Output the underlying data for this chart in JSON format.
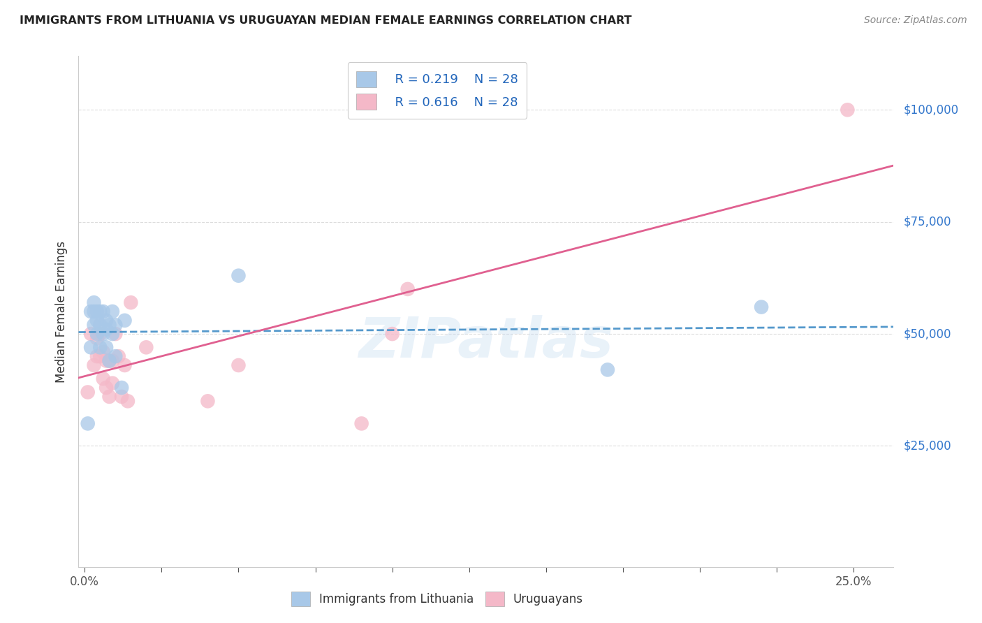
{
  "title": "IMMIGRANTS FROM LITHUANIA VS URUGUAYAN MEDIAN FEMALE EARNINGS CORRELATION CHART",
  "source": "Source: ZipAtlas.com",
  "xlabel_vals": [
    0.0,
    0.025,
    0.05,
    0.075,
    0.1,
    0.125,
    0.15,
    0.175,
    0.2,
    0.225,
    0.25
  ],
  "xlabel_edge_labels": {
    "0.0": "0.0%",
    "0.25": "25.0%"
  },
  "ylabel": "Median Female Earnings",
  "ylabel_ticks": [
    "$25,000",
    "$50,000",
    "$75,000",
    "$100,000"
  ],
  "ylabel_vals": [
    25000,
    50000,
    75000,
    100000
  ],
  "ylim": [
    -2000,
    112000
  ],
  "xlim": [
    -0.002,
    0.263
  ],
  "r_blue": "R = 0.219",
  "n_blue": "N = 28",
  "r_pink": "R = 0.616",
  "n_pink": "N = 28",
  "legend_label_blue": "Immigrants from Lithuania",
  "legend_label_pink": "Uruguayans",
  "blue_color": "#a8c8e8",
  "pink_color": "#f4b8c8",
  "blue_line_color": "#5599cc",
  "pink_line_color": "#e06090",
  "watermark": "ZIPatlas",
  "blue_x": [
    0.001,
    0.002,
    0.002,
    0.003,
    0.003,
    0.003,
    0.004,
    0.004,
    0.004,
    0.005,
    0.005,
    0.005,
    0.006,
    0.006,
    0.007,
    0.007,
    0.007,
    0.008,
    0.008,
    0.009,
    0.009,
    0.01,
    0.01,
    0.012,
    0.013,
    0.05,
    0.17,
    0.22
  ],
  "blue_y": [
    30000,
    47000,
    55000,
    52000,
    55000,
    57000,
    50000,
    53000,
    55000,
    47000,
    52000,
    55000,
    50000,
    55000,
    47000,
    51000,
    53000,
    44000,
    52000,
    50000,
    55000,
    45000,
    52000,
    38000,
    53000,
    63000,
    42000,
    56000
  ],
  "pink_x": [
    0.001,
    0.002,
    0.003,
    0.004,
    0.004,
    0.005,
    0.005,
    0.006,
    0.006,
    0.007,
    0.007,
    0.008,
    0.008,
    0.009,
    0.009,
    0.01,
    0.011,
    0.012,
    0.013,
    0.014,
    0.015,
    0.02,
    0.04,
    0.05,
    0.09,
    0.1,
    0.105,
    0.248
  ],
  "pink_y": [
    37000,
    50000,
    43000,
    49000,
    45000,
    50000,
    45000,
    40000,
    46000,
    38000,
    44000,
    36000,
    44000,
    39000,
    44000,
    50000,
    45000,
    36000,
    43000,
    35000,
    57000,
    47000,
    35000,
    43000,
    30000,
    50000,
    60000,
    100000
  ],
  "grid_color": "#dddddd",
  "spine_color": "#cccccc"
}
